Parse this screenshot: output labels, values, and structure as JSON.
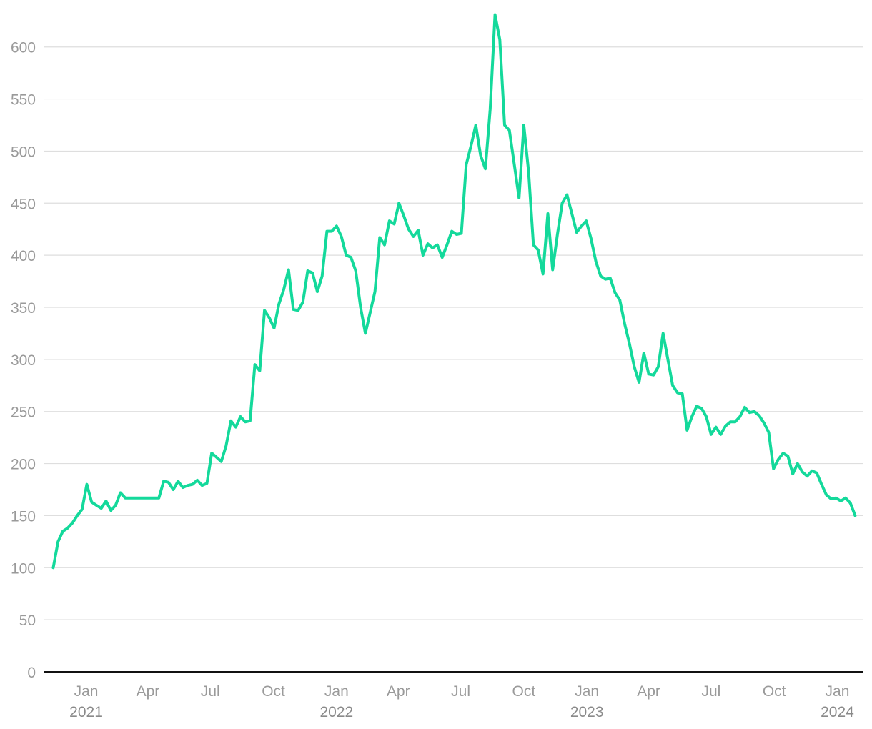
{
  "chart_data": {
    "type": "line",
    "title": "",
    "xlabel": "",
    "ylabel": "",
    "ylim": [
      0,
      630
    ],
    "xlim": [
      "2020-11-01",
      "2024-02-07"
    ],
    "grid": true,
    "colors": {
      "line": "#14d99b",
      "grid": "#dedede",
      "axis": "#111111",
      "tick_text": "#9a9a9a"
    },
    "y_ticks": [
      0,
      50,
      100,
      150,
      200,
      250,
      300,
      350,
      400,
      450,
      500,
      550,
      600
    ],
    "x_ticks": [
      {
        "date": "2021-01-01",
        "label": "Jan",
        "year": "2021"
      },
      {
        "date": "2021-04-01",
        "label": "Apr",
        "year": ""
      },
      {
        "date": "2021-07-01",
        "label": "Jul",
        "year": ""
      },
      {
        "date": "2021-10-01",
        "label": "Oct",
        "year": ""
      },
      {
        "date": "2022-01-01",
        "label": "Jan",
        "year": "2022"
      },
      {
        "date": "2022-04-01",
        "label": "Apr",
        "year": ""
      },
      {
        "date": "2022-07-01",
        "label": "Jul",
        "year": ""
      },
      {
        "date": "2022-10-01",
        "label": "Oct",
        "year": ""
      },
      {
        "date": "2023-01-01",
        "label": "Jan",
        "year": "2023"
      },
      {
        "date": "2023-04-01",
        "label": "Apr",
        "year": ""
      },
      {
        "date": "2023-07-01",
        "label": "Jul",
        "year": ""
      },
      {
        "date": "2023-10-01",
        "label": "Oct",
        "year": ""
      },
      {
        "date": "2024-01-01",
        "label": "Jan",
        "year": "2024"
      }
    ],
    "series": [
      {
        "points": [
          [
            "2020-11-14",
            100
          ],
          [
            "2020-11-21",
            125
          ],
          [
            "2020-11-28",
            135
          ],
          [
            "2020-12-05",
            138
          ],
          [
            "2020-12-12",
            143
          ],
          [
            "2020-12-19",
            150
          ],
          [
            "2020-12-26",
            156
          ],
          [
            "2021-01-02",
            180
          ],
          [
            "2021-01-09",
            163
          ],
          [
            "2021-01-16",
            160
          ],
          [
            "2021-01-23",
            157
          ],
          [
            "2021-01-30",
            164
          ],
          [
            "2021-02-06",
            155
          ],
          [
            "2021-02-13",
            160
          ],
          [
            "2021-02-20",
            172
          ],
          [
            "2021-02-27",
            167
          ],
          [
            "2021-03-06",
            167
          ],
          [
            "2021-03-13",
            167
          ],
          [
            "2021-03-20",
            167
          ],
          [
            "2021-03-27",
            167
          ],
          [
            "2021-04-03",
            167
          ],
          [
            "2021-04-10",
            167
          ],
          [
            "2021-04-17",
            167
          ],
          [
            "2021-04-24",
            183
          ],
          [
            "2021-05-01",
            182
          ],
          [
            "2021-05-08",
            175
          ],
          [
            "2021-05-15",
            183
          ],
          [
            "2021-05-22",
            177
          ],
          [
            "2021-05-29",
            179
          ],
          [
            "2021-06-05",
            180
          ],
          [
            "2021-06-12",
            184
          ],
          [
            "2021-06-19",
            179
          ],
          [
            "2021-06-26",
            181
          ],
          [
            "2021-07-03",
            210
          ],
          [
            "2021-07-10",
            206
          ],
          [
            "2021-07-17",
            202
          ],
          [
            "2021-07-24",
            217
          ],
          [
            "2021-07-31",
            241
          ],
          [
            "2021-08-07",
            235
          ],
          [
            "2021-08-14",
            245
          ],
          [
            "2021-08-21",
            240
          ],
          [
            "2021-08-28",
            241
          ],
          [
            "2021-09-04",
            295
          ],
          [
            "2021-09-11",
            289
          ],
          [
            "2021-09-18",
            347
          ],
          [
            "2021-09-25",
            340
          ],
          [
            "2021-10-02",
            330
          ],
          [
            "2021-10-09",
            353
          ],
          [
            "2021-10-16",
            367
          ],
          [
            "2021-10-23",
            386
          ],
          [
            "2021-10-30",
            348
          ],
          [
            "2021-11-06",
            347
          ],
          [
            "2021-11-13",
            355
          ],
          [
            "2021-11-20",
            385
          ],
          [
            "2021-11-27",
            383
          ],
          [
            "2021-12-04",
            365
          ],
          [
            "2021-12-11",
            380
          ],
          [
            "2021-12-18",
            423
          ],
          [
            "2021-12-25",
            423
          ],
          [
            "2022-01-01",
            428
          ],
          [
            "2022-01-08",
            418
          ],
          [
            "2022-01-15",
            400
          ],
          [
            "2022-01-22",
            398
          ],
          [
            "2022-01-29",
            385
          ],
          [
            "2022-02-05",
            350
          ],
          [
            "2022-02-12",
            325
          ],
          [
            "2022-02-19",
            345
          ],
          [
            "2022-02-26",
            365
          ],
          [
            "2022-03-05",
            417
          ],
          [
            "2022-03-12",
            410
          ],
          [
            "2022-03-19",
            433
          ],
          [
            "2022-03-26",
            430
          ],
          [
            "2022-04-02",
            450
          ],
          [
            "2022-04-09",
            438
          ],
          [
            "2022-04-16",
            425
          ],
          [
            "2022-04-23",
            418
          ],
          [
            "2022-04-30",
            424
          ],
          [
            "2022-05-07",
            400
          ],
          [
            "2022-05-14",
            411
          ],
          [
            "2022-05-21",
            407
          ],
          [
            "2022-05-28",
            410
          ],
          [
            "2022-06-04",
            398
          ],
          [
            "2022-06-11",
            410
          ],
          [
            "2022-06-18",
            423
          ],
          [
            "2022-06-25",
            420
          ],
          [
            "2022-07-02",
            421
          ],
          [
            "2022-07-09",
            487
          ],
          [
            "2022-07-16",
            505
          ],
          [
            "2022-07-23",
            525
          ],
          [
            "2022-07-30",
            496
          ],
          [
            "2022-08-06",
            483
          ],
          [
            "2022-08-13",
            540
          ],
          [
            "2022-08-20",
            631
          ],
          [
            "2022-08-27",
            607
          ],
          [
            "2022-09-03",
            525
          ],
          [
            "2022-09-10",
            520
          ],
          [
            "2022-09-17",
            488
          ],
          [
            "2022-09-24",
            455
          ],
          [
            "2022-10-01",
            525
          ],
          [
            "2022-10-08",
            480
          ],
          [
            "2022-10-15",
            410
          ],
          [
            "2022-10-22",
            405
          ],
          [
            "2022-10-29",
            382
          ],
          [
            "2022-11-05",
            440
          ],
          [
            "2022-11-12",
            386
          ],
          [
            "2022-11-19",
            420
          ],
          [
            "2022-11-26",
            450
          ],
          [
            "2022-12-03",
            458
          ],
          [
            "2022-12-10",
            440
          ],
          [
            "2022-12-17",
            422
          ],
          [
            "2022-12-24",
            428
          ],
          [
            "2022-12-31",
            433
          ],
          [
            "2023-01-07",
            416
          ],
          [
            "2023-01-14",
            394
          ],
          [
            "2023-01-21",
            380
          ],
          [
            "2023-01-28",
            377
          ],
          [
            "2023-02-04",
            378
          ],
          [
            "2023-02-11",
            364
          ],
          [
            "2023-02-18",
            357
          ],
          [
            "2023-02-25",
            334
          ],
          [
            "2023-03-04",
            315
          ],
          [
            "2023-03-11",
            293
          ],
          [
            "2023-03-18",
            278
          ],
          [
            "2023-03-25",
            306
          ],
          [
            "2023-04-01",
            286
          ],
          [
            "2023-04-08",
            285
          ],
          [
            "2023-04-15",
            293
          ],
          [
            "2023-04-22",
            325
          ],
          [
            "2023-04-29",
            300
          ],
          [
            "2023-05-06",
            275
          ],
          [
            "2023-05-13",
            268
          ],
          [
            "2023-05-20",
            267
          ],
          [
            "2023-05-27",
            232
          ],
          [
            "2023-06-03",
            245
          ],
          [
            "2023-06-10",
            255
          ],
          [
            "2023-06-17",
            253
          ],
          [
            "2023-06-24",
            245
          ],
          [
            "2023-07-01",
            228
          ],
          [
            "2023-07-08",
            235
          ],
          [
            "2023-07-15",
            228
          ],
          [
            "2023-07-22",
            236
          ],
          [
            "2023-07-29",
            240
          ],
          [
            "2023-08-05",
            240
          ],
          [
            "2023-08-12",
            245
          ],
          [
            "2023-08-19",
            254
          ],
          [
            "2023-08-26",
            249
          ],
          [
            "2023-09-02",
            250
          ],
          [
            "2023-09-09",
            246
          ],
          [
            "2023-09-16",
            239
          ],
          [
            "2023-09-23",
            230
          ],
          [
            "2023-09-30",
            195
          ],
          [
            "2023-10-07",
            204
          ],
          [
            "2023-10-14",
            210
          ],
          [
            "2023-10-21",
            207
          ],
          [
            "2023-10-28",
            190
          ],
          [
            "2023-11-04",
            200
          ],
          [
            "2023-11-11",
            192
          ],
          [
            "2023-11-18",
            188
          ],
          [
            "2023-11-25",
            193
          ],
          [
            "2023-12-02",
            191
          ],
          [
            "2023-12-09",
            180
          ],
          [
            "2023-12-16",
            170
          ],
          [
            "2023-12-23",
            166
          ],
          [
            "2023-12-30",
            167
          ],
          [
            "2024-01-06",
            164
          ],
          [
            "2024-01-13",
            167
          ],
          [
            "2024-01-20",
            162
          ],
          [
            "2024-01-27",
            150
          ]
        ]
      }
    ]
  }
}
